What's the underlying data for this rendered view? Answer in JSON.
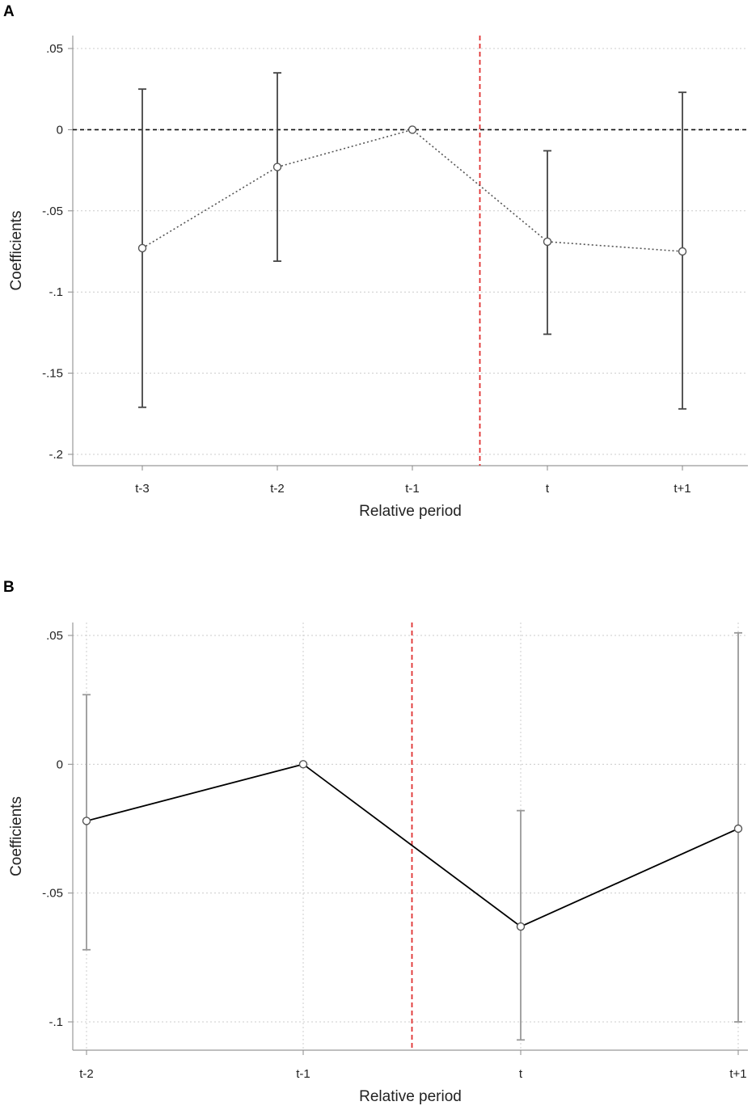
{
  "chart_data": [
    {
      "panel_label": "A",
      "type": "line",
      "xlabel": "Relative period",
      "ylabel": "Coefficients",
      "categories": [
        "t-3",
        "t-2",
        "t-1",
        "t",
        "t+1"
      ],
      "ylim": [
        -0.2,
        0.05
      ],
      "yticks": [
        0.05,
        0,
        -0.05,
        -0.1,
        -0.15,
        -0.2
      ],
      "ytick_labels": [
        ".05",
        "0",
        "-.05",
        "-.1",
        "-.15",
        "-.2"
      ],
      "grid": "horizontal dotted",
      "zero_line": "dashed",
      "event_line_between": [
        "t-1",
        "t"
      ],
      "series": [
        {
          "name": "Coefficients",
          "line_style": "dotted",
          "values": [
            -0.073,
            -0.023,
            0,
            -0.069,
            -0.075
          ],
          "ci_low": [
            -0.171,
            -0.081,
            0,
            -0.126,
            -0.172
          ],
          "ci_high": [
            0.025,
            0.035,
            0,
            -0.013,
            0.023
          ]
        }
      ],
      "colors": {
        "series": "#555555",
        "ci": "#444444",
        "event_line": "#e03030",
        "grid": "#cccccc"
      }
    },
    {
      "panel_label": "B",
      "type": "line",
      "xlabel": "Relative period",
      "ylabel": "Coefficients",
      "categories": [
        "t-2",
        "t-1",
        "t",
        "t+1"
      ],
      "ylim": [
        -0.11,
        0.05
      ],
      "yticks": [
        0.05,
        0,
        -0.05,
        -0.1
      ],
      "ytick_labels": [
        ".05",
        "0",
        "-.05",
        "-.1"
      ],
      "grid": "horizontal and vertical dotted",
      "zero_line": "none",
      "event_line_between": [
        "t-1",
        "t"
      ],
      "series": [
        {
          "name": "Coefficients",
          "line_style": "solid",
          "values": [
            -0.022,
            0,
            -0.063,
            -0.025
          ],
          "ci_low": [
            -0.072,
            0,
            -0.107,
            -0.1
          ],
          "ci_high": [
            0.027,
            0,
            -0.018,
            0.051
          ]
        }
      ],
      "colors": {
        "series": "#000000",
        "ci": "#999999",
        "event_line": "#e03030",
        "grid": "#cccccc"
      }
    }
  ]
}
